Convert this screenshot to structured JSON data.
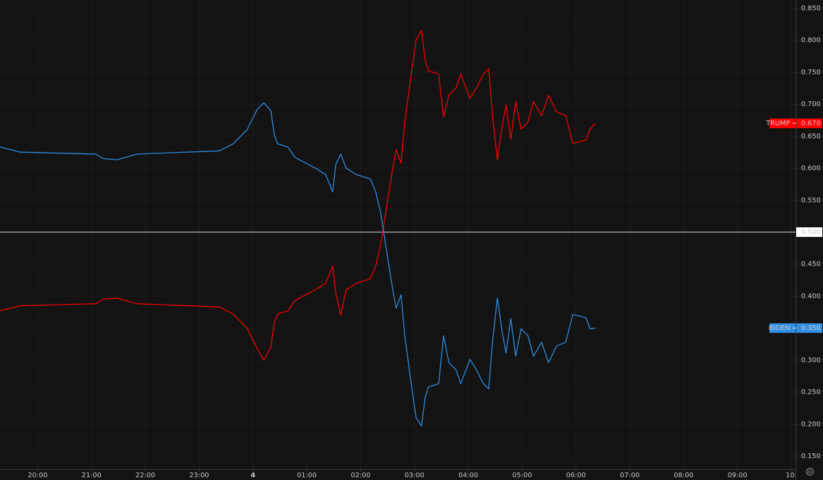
{
  "chart_data": {
    "type": "line",
    "x": [
      19.3,
      19.68,
      21.08,
      21.21,
      21.47,
      21.85,
      23.38,
      23.63,
      23.89,
      24.08,
      24.2,
      24.33,
      24.4,
      24.46,
      24.65,
      24.78,
      24.91,
      25.16,
      25.35,
      25.48,
      25.54,
      25.63,
      25.73,
      25.92,
      26.18,
      26.28,
      26.37,
      26.43,
      26.5,
      26.59,
      26.66,
      26.75,
      26.82,
      26.94,
      27.03,
      27.13,
      27.2,
      27.26,
      27.45,
      27.54,
      27.64,
      27.77,
      27.86,
      28.03,
      28.15,
      28.28,
      28.38,
      28.45,
      28.54,
      28.62,
      28.7,
      28.79,
      28.88,
      28.98,
      29.11,
      29.21,
      29.36,
      29.49,
      29.64,
      29.81,
      29.94,
      30.06,
      30.19,
      30.26,
      30.36
    ],
    "series": [
      {
        "name": "TRUMP",
        "color": "#ff0000",
        "values": [
          0.377,
          0.385,
          0.388,
          0.395,
          0.397,
          0.388,
          0.383,
          0.372,
          0.35,
          0.318,
          0.3,
          0.32,
          0.36,
          0.372,
          0.377,
          0.393,
          0.399,
          0.41,
          0.42,
          0.447,
          0.404,
          0.37,
          0.41,
          0.42,
          0.427,
          0.447,
          0.479,
          0.511,
          0.549,
          0.597,
          0.629,
          0.608,
          0.672,
          0.747,
          0.8,
          0.815,
          0.768,
          0.752,
          0.747,
          0.68,
          0.714,
          0.725,
          0.747,
          0.709,
          0.725,
          0.747,
          0.755,
          0.682,
          0.613,
          0.661,
          0.699,
          0.645,
          0.704,
          0.661,
          0.672,
          0.704,
          0.682,
          0.714,
          0.688,
          0.682,
          0.639,
          0.641,
          0.644,
          0.661,
          0.67
        ],
        "last_label": {
          "value": 0.67,
          "label": "0.670"
        }
      },
      {
        "name": "BIDEN",
        "color": "#2f8fe6",
        "values": [
          0.633,
          0.625,
          0.622,
          0.615,
          0.613,
          0.622,
          0.627,
          0.638,
          0.66,
          0.692,
          0.702,
          0.69,
          0.65,
          0.638,
          0.633,
          0.617,
          0.611,
          0.6,
          0.59,
          0.563,
          0.606,
          0.622,
          0.6,
          0.59,
          0.583,
          0.563,
          0.531,
          0.499,
          0.461,
          0.413,
          0.381,
          0.402,
          0.338,
          0.263,
          0.21,
          0.197,
          0.242,
          0.258,
          0.263,
          0.338,
          0.296,
          0.285,
          0.263,
          0.301,
          0.285,
          0.263,
          0.255,
          0.328,
          0.397,
          0.349,
          0.311,
          0.365,
          0.306,
          0.349,
          0.338,
          0.306,
          0.328,
          0.296,
          0.322,
          0.328,
          0.371,
          0.369,
          0.366,
          0.349,
          0.35
        ],
        "last_label": {
          "value": 0.35,
          "label": "0.350"
        }
      }
    ],
    "xlim": [
      19.3,
      34.08
    ],
    "xticks": [
      {
        "value": 20,
        "label": "20:00"
      },
      {
        "value": 21,
        "label": "21:00"
      },
      {
        "value": 22,
        "label": "22:00"
      },
      {
        "value": 23,
        "label": "23:00"
      },
      {
        "value": 24,
        "label": "4"
      },
      {
        "value": 25,
        "label": "01:00"
      },
      {
        "value": 26,
        "label": "02:00"
      },
      {
        "value": 27,
        "label": "03:00"
      },
      {
        "value": 28,
        "label": "04:00"
      },
      {
        "value": 29,
        "label": "05:00"
      },
      {
        "value": 30,
        "label": "06:00"
      },
      {
        "value": 31,
        "label": "07:00"
      },
      {
        "value": 32,
        "label": "08:00"
      },
      {
        "value": 33,
        "label": "09:00"
      },
      {
        "value": 34,
        "label": "10:"
      }
    ],
    "ylim": [
      0.1297,
      0.8628
    ],
    "yticks": [
      {
        "value": 0.15,
        "label": "0.150"
      },
      {
        "value": 0.2,
        "label": "0.200"
      },
      {
        "value": 0.25,
        "label": "0.250"
      },
      {
        "value": 0.3,
        "label": "0.300"
      },
      {
        "value": 0.35,
        "label": "0.350"
      },
      {
        "value": 0.4,
        "label": "0.400"
      },
      {
        "value": 0.45,
        "label": "0.450"
      },
      {
        "value": 0.5,
        "label": "0.500"
      },
      {
        "value": 0.55,
        "label": "0.550"
      },
      {
        "value": 0.6,
        "label": "0.600"
      },
      {
        "value": 0.65,
        "label": "0.650"
      },
      {
        "value": 0.7,
        "label": "0.700"
      },
      {
        "value": 0.75,
        "label": "0.750"
      },
      {
        "value": 0.8,
        "label": "0.800"
      },
      {
        "value": 0.85,
        "label": "0.850"
      }
    ],
    "hline": 0.5,
    "grid": true
  }
}
